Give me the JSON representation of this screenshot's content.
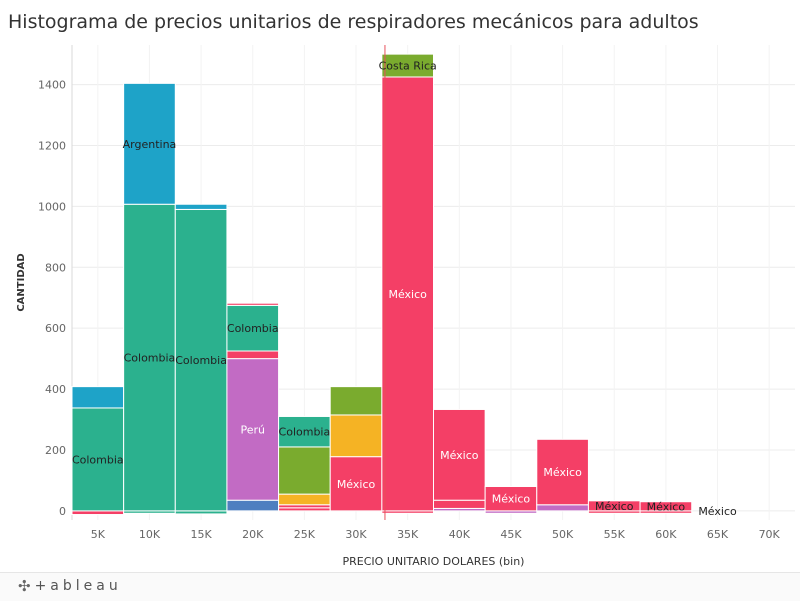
{
  "title": "Histograma de precios unitarios de respiradores mecánicos para adultos",
  "footer": {
    "logo_text": "+ableau",
    "logo_icon": "tableau-plus-icon"
  },
  "chart_data": {
    "type": "bar",
    "stacked": true,
    "xlabel": "PRECIO UNITARIO DOLARES (bin)",
    "ylabel": "CANTIDAD",
    "ylim": [
      -30,
      1530
    ],
    "yticks": [
      0,
      200,
      400,
      600,
      800,
      1000,
      1200,
      1400
    ],
    "xlim": [
      2.5,
      72.5
    ],
    "xticks": [
      5,
      10,
      15,
      20,
      25,
      30,
      35,
      40,
      45,
      50,
      55,
      60,
      65,
      70
    ],
    "xtick_labels": [
      "5K",
      "10K",
      "15K",
      "20K",
      "25K",
      "30K",
      "35K",
      "40K",
      "45K",
      "50K",
      "55K",
      "60K",
      "65K",
      "70K"
    ],
    "bin_width": 5,
    "grid": true,
    "reference_line_x": 32.8,
    "colors": {
      "teal": "#2bb18e",
      "blue": "#1ea3c8",
      "pink": "#f43f66",
      "purple": "#c26bc4",
      "green": "#7aab2e",
      "orange": "#f5b324",
      "steelblue": "#4f7fc0",
      "reference": "#e8505b"
    },
    "bins": [
      {
        "bin_start": 2.5,
        "segments": [
          {
            "value": -12,
            "color": "pink"
          },
          {
            "value": 338,
            "color": "teal",
            "label": "Colombia"
          },
          {
            "value": 70,
            "color": "blue"
          }
        ]
      },
      {
        "bin_start": 7.5,
        "segments": [
          {
            "value": -8,
            "color": "teal"
          },
          {
            "value": 1007,
            "color": "teal",
            "label": "Colombia"
          },
          {
            "value": 397,
            "color": "blue",
            "label": "Argentina"
          }
        ]
      },
      {
        "bin_start": 12.5,
        "segments": [
          {
            "value": -10,
            "color": "teal"
          },
          {
            "value": 990,
            "color": "teal",
            "label": "Colombia"
          },
          {
            "value": 17,
            "color": "blue"
          }
        ]
      },
      {
        "bin_start": 17.5,
        "segments": [
          {
            "value": 35,
            "color": "steelblue"
          },
          {
            "value": 465,
            "color": "purple",
            "label": "Perú"
          },
          {
            "value": 25,
            "color": "pink"
          },
          {
            "value": 150,
            "color": "teal",
            "label": "Colombia"
          },
          {
            "value": 7,
            "color": "pink"
          }
        ]
      },
      {
        "bin_start": 22.5,
        "segments": [
          {
            "value": 10,
            "color": "pink"
          },
          {
            "value": 10,
            "color": "pink"
          },
          {
            "value": 35,
            "color": "orange"
          },
          {
            "value": 155,
            "color": "green"
          },
          {
            "value": 100,
            "color": "teal",
            "label": "Colombia"
          }
        ]
      },
      {
        "bin_start": 27.5,
        "segments": [
          {
            "value": 178,
            "color": "pink",
            "label": "México"
          },
          {
            "value": 137,
            "color": "orange"
          },
          {
            "value": 93,
            "color": "green"
          }
        ]
      },
      {
        "bin_start": 32.5,
        "segments": [
          {
            "value": -8,
            "color": "pink"
          },
          {
            "value": 1425,
            "color": "pink",
            "label": "México"
          },
          {
            "value": 75,
            "color": "green",
            "label": "Costa Rica"
          }
        ]
      },
      {
        "bin_start": 37.5,
        "segments": [
          {
            "value": 8,
            "color": "purple"
          },
          {
            "value": 27,
            "color": "pink"
          },
          {
            "value": 298,
            "color": "pink",
            "label": "México"
          }
        ]
      },
      {
        "bin_start": 42.5,
        "segments": [
          {
            "value": -8,
            "color": "purple"
          },
          {
            "value": 80,
            "color": "pink",
            "label": "México"
          }
        ]
      },
      {
        "bin_start": 47.5,
        "segments": [
          {
            "value": 20,
            "color": "purple"
          },
          {
            "value": 215,
            "color": "pink",
            "label": "México"
          }
        ]
      },
      {
        "bin_start": 52.5,
        "segments": [
          {
            "value": -8,
            "color": "pink"
          },
          {
            "value": 33,
            "color": "pink",
            "label": "México"
          }
        ]
      },
      {
        "bin_start": 57.5,
        "segments": [
          {
            "value": -8,
            "color": "pink"
          },
          {
            "value": 30,
            "color": "pink",
            "label": "México"
          }
        ]
      },
      {
        "bin_start": 62.5,
        "segments": [
          {
            "value": 0,
            "color": "pink",
            "label": "México"
          }
        ]
      }
    ]
  }
}
